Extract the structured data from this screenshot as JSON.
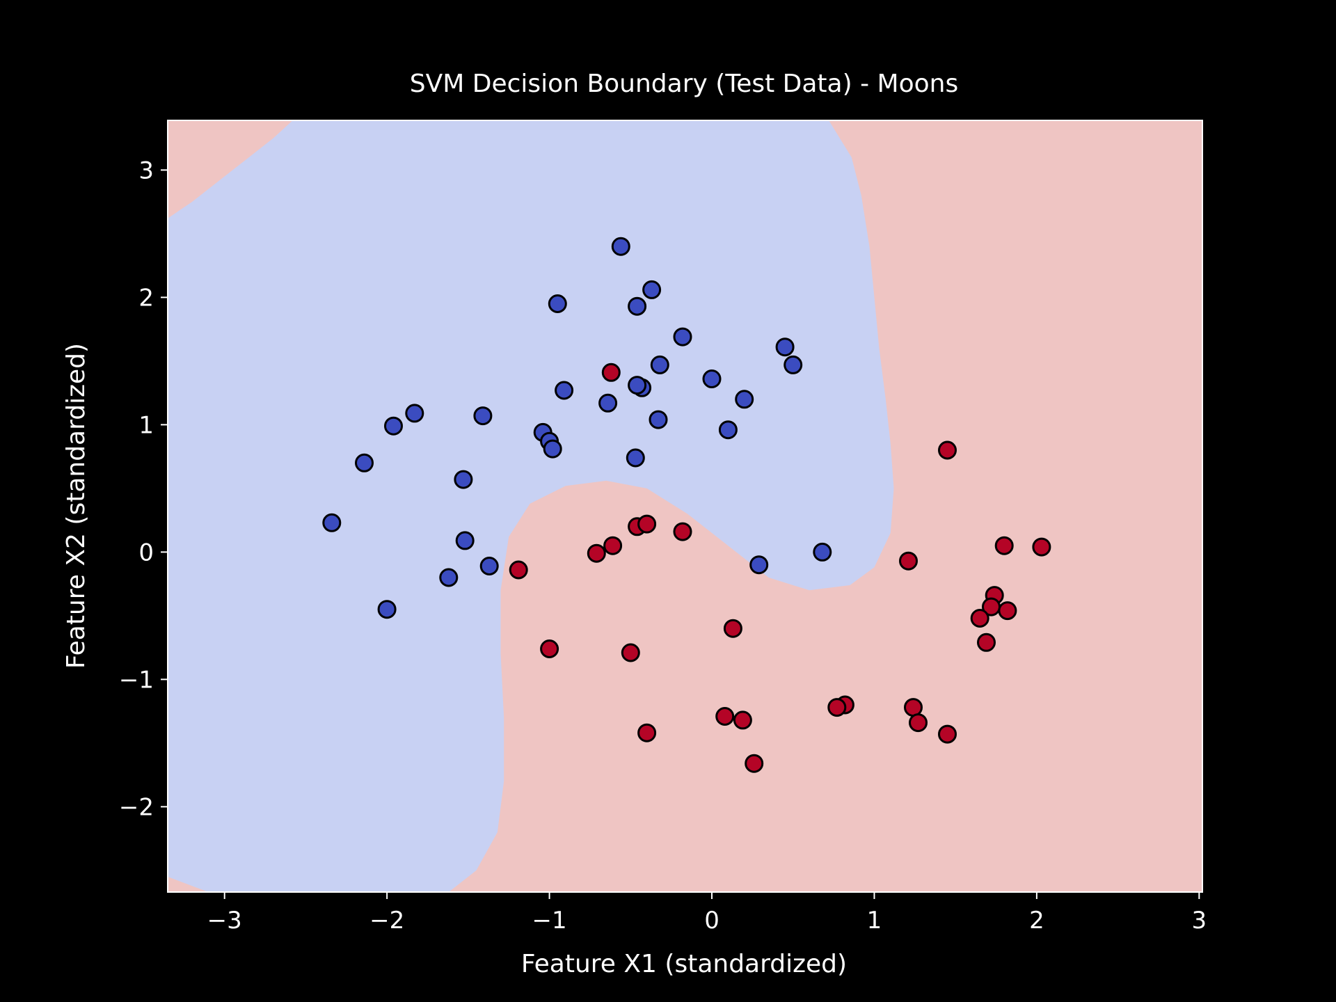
{
  "chart_data": {
    "type": "scatter",
    "title": "SVM Decision Boundary (Test Data) - Moons",
    "xlabel": "Feature X1 (standardized)",
    "ylabel": "Feature X2 (standardized)",
    "xlim": [
      -3.35,
      3.02
    ],
    "ylim": [
      -2.67,
      3.39
    ],
    "xticks": [
      -3,
      -2,
      -1,
      0,
      1,
      2,
      3
    ],
    "yticks": [
      -2,
      -1,
      0,
      1,
      2,
      3
    ],
    "xtick_labels": [
      "−3",
      "−2",
      "−1",
      "0",
      "1",
      "2",
      "3"
    ],
    "ytick_labels": [
      "−2",
      "−1",
      "0",
      "1",
      "2",
      "3"
    ],
    "grid": false,
    "legend": false,
    "colors": {
      "background": "#000000",
      "text": "#ffffff",
      "region_class_0": "#c8d1f3",
      "region_class_1": "#efc5c3",
      "class_0": "#3b4cc0",
      "class_1": "#b40426",
      "marker_edge": "#000000"
    },
    "decision_boundary": [
      [
        -3.35,
        2.62
      ],
      [
        -3.2,
        2.75
      ],
      [
        -3.0,
        2.95
      ],
      [
        -2.85,
        3.1
      ],
      [
        -2.7,
        3.25
      ],
      [
        -2.58,
        3.39
      ],
      [
        0.72,
        3.39
      ],
      [
        0.86,
        3.1
      ],
      [
        0.92,
        2.8
      ],
      [
        0.97,
        2.4
      ],
      [
        1.0,
        2.0
      ],
      [
        1.03,
        1.6
      ],
      [
        1.07,
        1.2
      ],
      [
        1.1,
        0.85
      ],
      [
        1.12,
        0.5
      ],
      [
        1.1,
        0.15
      ],
      [
        1.0,
        -0.12
      ],
      [
        0.85,
        -0.26
      ],
      [
        0.6,
        -0.3
      ],
      [
        0.35,
        -0.2
      ],
      [
        0.1,
        0.05
      ],
      [
        -0.15,
        0.3
      ],
      [
        -0.4,
        0.5
      ],
      [
        -0.65,
        0.56
      ],
      [
        -0.9,
        0.52
      ],
      [
        -1.12,
        0.38
      ],
      [
        -1.25,
        0.12
      ],
      [
        -1.3,
        -0.3
      ],
      [
        -1.3,
        -0.8
      ],
      [
        -1.28,
        -1.3
      ],
      [
        -1.28,
        -1.8
      ],
      [
        -1.32,
        -2.2
      ],
      [
        -1.45,
        -2.5
      ],
      [
        -1.62,
        -2.67
      ],
      [
        -3.1,
        -2.67
      ],
      [
        -3.35,
        -2.55
      ]
    ],
    "series": [
      {
        "class": 0,
        "points": [
          [
            -0.56,
            2.4
          ],
          [
            -0.37,
            2.06
          ],
          [
            -0.95,
            1.95
          ],
          [
            -0.46,
            1.93
          ],
          [
            -0.18,
            1.69
          ],
          [
            0.45,
            1.61
          ],
          [
            0.5,
            1.47
          ],
          [
            -0.32,
            1.47
          ],
          [
            0.0,
            1.36
          ],
          [
            -0.43,
            1.29
          ],
          [
            -0.46,
            1.31
          ],
          [
            -0.91,
            1.27
          ],
          [
            0.2,
            1.2
          ],
          [
            -0.64,
            1.17
          ],
          [
            -1.83,
            1.09
          ],
          [
            -1.41,
            1.07
          ],
          [
            -0.33,
            1.04
          ],
          [
            -1.96,
            0.99
          ],
          [
            -1.04,
            0.94
          ],
          [
            0.1,
            0.96
          ],
          [
            -1.0,
            0.87
          ],
          [
            -0.98,
            0.81
          ],
          [
            -0.47,
            0.74
          ],
          [
            -2.14,
            0.7
          ],
          [
            -1.53,
            0.57
          ],
          [
            -2.34,
            0.23
          ],
          [
            -1.52,
            0.09
          ],
          [
            -1.37,
            -0.11
          ],
          [
            0.29,
            -0.1
          ],
          [
            0.68,
            0.0
          ],
          [
            -1.62,
            -0.2
          ],
          [
            -2.0,
            -0.45
          ]
        ]
      },
      {
        "class": 1,
        "points": [
          [
            -0.62,
            1.41
          ],
          [
            1.45,
            0.8
          ],
          [
            -0.46,
            0.2
          ],
          [
            -0.4,
            0.22
          ],
          [
            -0.18,
            0.16
          ],
          [
            -0.61,
            0.05
          ],
          [
            -0.71,
            -0.01
          ],
          [
            -1.19,
            -0.14
          ],
          [
            1.21,
            -0.07
          ],
          [
            1.8,
            0.05
          ],
          [
            2.03,
            0.04
          ],
          [
            1.74,
            -0.34
          ],
          [
            1.72,
            -0.43
          ],
          [
            1.82,
            -0.46
          ],
          [
            1.65,
            -0.52
          ],
          [
            1.69,
            -0.71
          ],
          [
            0.13,
            -0.6
          ],
          [
            -1.0,
            -0.76
          ],
          [
            -0.5,
            -0.79
          ],
          [
            0.82,
            -1.2
          ],
          [
            0.77,
            -1.22
          ],
          [
            1.24,
            -1.22
          ],
          [
            1.27,
            -1.34
          ],
          [
            0.08,
            -1.29
          ],
          [
            0.19,
            -1.32
          ],
          [
            -0.4,
            -1.42
          ],
          [
            1.45,
            -1.43
          ],
          [
            0.26,
            -1.66
          ]
        ]
      }
    ]
  }
}
